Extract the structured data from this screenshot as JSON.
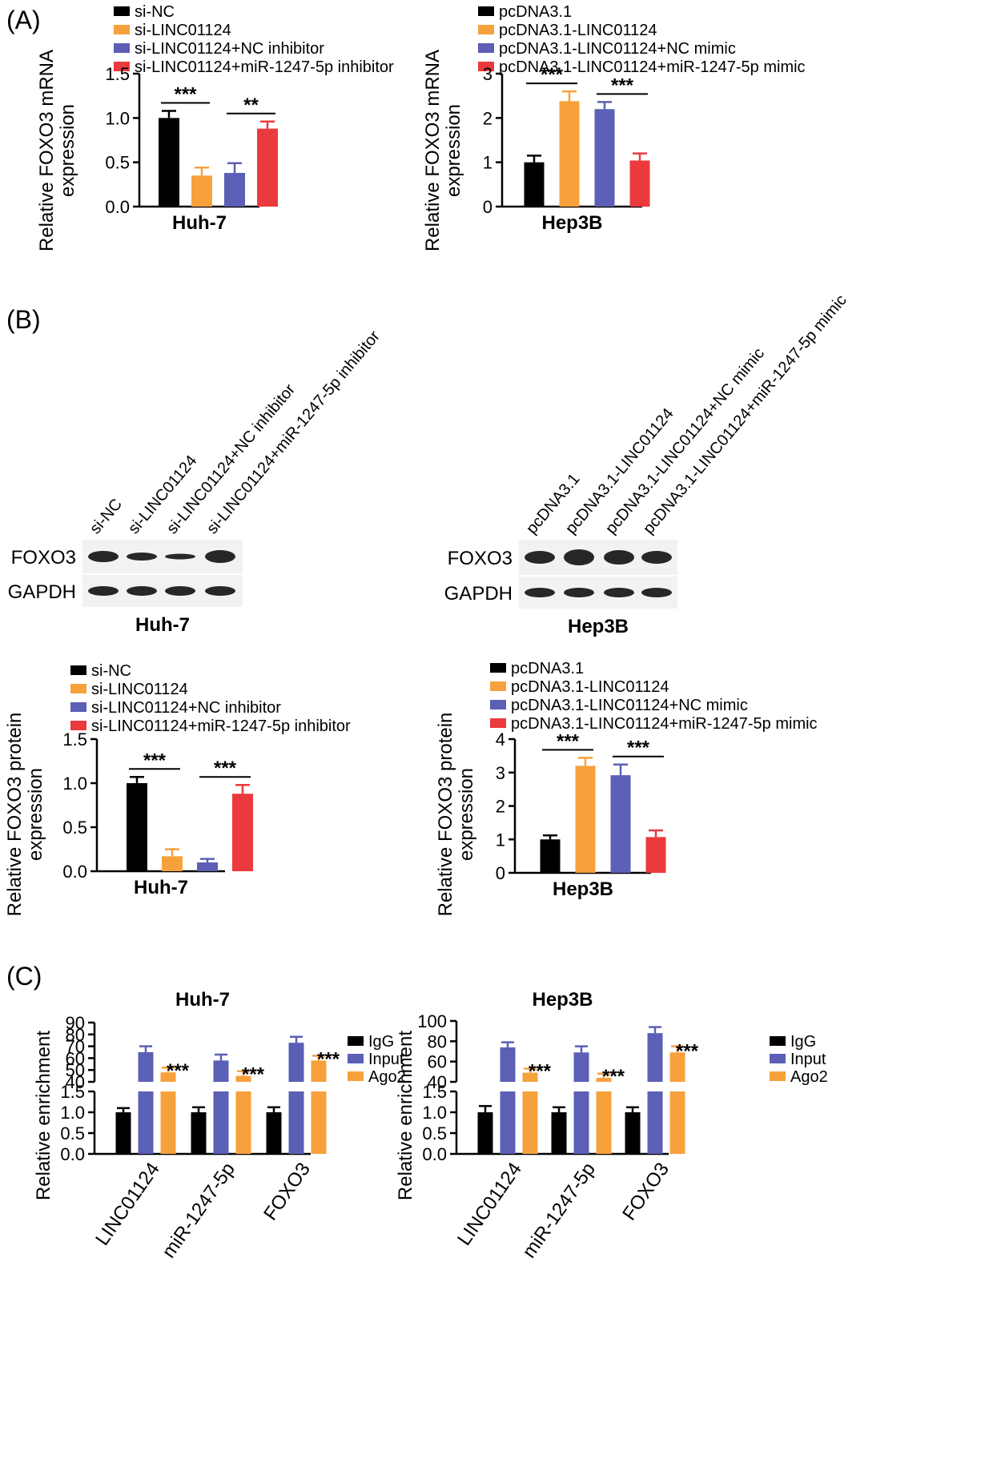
{
  "colors": {
    "black": "#000000",
    "orange": "#f7a13c",
    "blue": "#5b5fb5",
    "red": "#ea3a3e",
    "gray": "#8a8a8a"
  },
  "panel_labels": [
    "(A)",
    "(B)",
    "(C)"
  ],
  "blots": [
    {
      "cell_line": "Huh-7",
      "lanes": [
        "si-NC",
        "si-LINC01124",
        "si-LINC01124+NC inhibitor",
        "si-LINC01124+miR-1247-5p inhibitor"
      ],
      "rows": [
        "FOXO3",
        "GAPDH"
      ]
    },
    {
      "cell_line": "Hep3B",
      "lanes": [
        "pcDNA3.1",
        "pcDNA3.1-LINC01124",
        "pcDNA3.1-LINC01124+NC mimic",
        "pcDNA3.1-LINC01124+miR-1247-5p mimic"
      ],
      "rows": [
        "FOXO3",
        "GAPDH"
      ]
    }
  ],
  "chart_data": [
    {
      "type": "bar",
      "panel": "A",
      "legend": [
        "si-NC",
        "si-LINC01124",
        "si-LINC01124+NC inhibitor",
        "si-LINC01124+miR-1247-5p inhibitor"
      ],
      "ylabel": [
        "Relative FOXO3 mRNA",
        "expression"
      ],
      "xlabel": "Huh-7",
      "ylim": [
        0,
        1.5
      ],
      "yticks": [
        "0.0",
        "0.5",
        "1.0",
        "1.5"
      ],
      "values": [
        1.0,
        0.35,
        0.38,
        0.88
      ],
      "errors": [
        0.08,
        0.09,
        0.11,
        0.08
      ],
      "significance": [
        "***",
        "**"
      ]
    },
    {
      "type": "bar",
      "panel": "A",
      "legend": [
        "pcDNA3.1",
        "pcDNA3.1-LINC01124",
        "pcDNA3.1-LINC01124+NC mimic",
        "pcDNA3.1-LINC01124+miR-1247-5p mimic"
      ],
      "ylabel": [
        "Relative FOXO3 mRNA",
        "expression"
      ],
      "xlabel": "Hep3B",
      "ylim": [
        0,
        3
      ],
      "yticks": [
        "0",
        "1",
        "2",
        "3"
      ],
      "values": [
        1.0,
        2.38,
        2.2,
        1.04
      ],
      "errors": [
        0.15,
        0.22,
        0.16,
        0.16
      ],
      "significance": [
        "***",
        "***"
      ]
    },
    {
      "type": "bar",
      "panel": "B",
      "legend": [
        "si-NC",
        "si-LINC01124",
        "si-LINC01124+NC inhibitor",
        "si-LINC01124+miR-1247-5p inhibitor"
      ],
      "ylabel": [
        "Relative FOXO3 protein",
        "expression"
      ],
      "xlabel": "Huh-7",
      "ylim": [
        0,
        1.5
      ],
      "yticks": [
        "0.0",
        "0.5",
        "1.0",
        "1.5"
      ],
      "values": [
        1.0,
        0.17,
        0.1,
        0.88
      ],
      "errors": [
        0.07,
        0.08,
        0.04,
        0.1
      ],
      "significance": [
        "***",
        "***"
      ]
    },
    {
      "type": "bar",
      "panel": "B",
      "legend": [
        "pcDNA3.1",
        "pcDNA3.1-LINC01124",
        "pcDNA3.1-LINC01124+NC mimic",
        "pcDNA3.1-LINC01124+miR-1247-5p mimic"
      ],
      "ylabel": [
        "Relative FOXO3 protein",
        "expression"
      ],
      "xlabel": "Hep3B",
      "ylim": [
        0,
        4
      ],
      "yticks": [
        "0",
        "1",
        "2",
        "3",
        "4"
      ],
      "values": [
        1.0,
        3.2,
        2.92,
        1.07
      ],
      "errors": [
        0.12,
        0.24,
        0.32,
        0.2
      ],
      "significance": [
        "***",
        "***"
      ]
    },
    {
      "type": "bar",
      "panel": "C",
      "title": "Huh-7",
      "ylabel": "Relative enrichment",
      "categories": [
        "LINC01124",
        "miR-1247-5p",
        "FOXO3"
      ],
      "series": [
        {
          "name": "IgG",
          "values": [
            1.0,
            1.0,
            1.0
          ],
          "errors": [
            0.1,
            0.12,
            0.12
          ]
        },
        {
          "name": "Input",
          "values": [
            65,
            58,
            73
          ],
          "errors": [
            5,
            5,
            5
          ]
        },
        {
          "name": "Ago2",
          "values": [
            48,
            45,
            58
          ],
          "errors": [
            4,
            4,
            4
          ]
        }
      ],
      "broken_axis": {
        "lower": [
          0,
          1.5
        ],
        "upper": [
          40,
          90
        ]
      },
      "yticks_lower": [
        "0.0",
        "0.5",
        "1.0",
        "1.5"
      ],
      "yticks_upper": [
        "40",
        "50",
        "60",
        "70",
        "80",
        "90"
      ],
      "significance": [
        "***",
        "***",
        "***"
      ]
    },
    {
      "type": "bar",
      "panel": "C",
      "title": "Hep3B",
      "ylabel": "Relative enrichment",
      "categories": [
        "LINC01124",
        "miR-1247-5p",
        "FOXO3"
      ],
      "series": [
        {
          "name": "IgG",
          "values": [
            1.0,
            1.0,
            1.0
          ],
          "errors": [
            0.15,
            0.12,
            0.12
          ]
        },
        {
          "name": "Input",
          "values": [
            74,
            69,
            88
          ],
          "errors": [
            5,
            6,
            6
          ]
        },
        {
          "name": "Ago2",
          "values": [
            49,
            44,
            69
          ],
          "errors": [
            4,
            4,
            6
          ]
        }
      ],
      "broken_axis": {
        "lower": [
          0,
          1.5
        ],
        "upper": [
          40,
          100
        ]
      },
      "yticks_lower": [
        "0.0",
        "0.5",
        "1.0",
        "1.5"
      ],
      "yticks_upper": [
        "40",
        "60",
        "80",
        "100"
      ],
      "significance": [
        "***",
        "***",
        "***"
      ]
    }
  ]
}
